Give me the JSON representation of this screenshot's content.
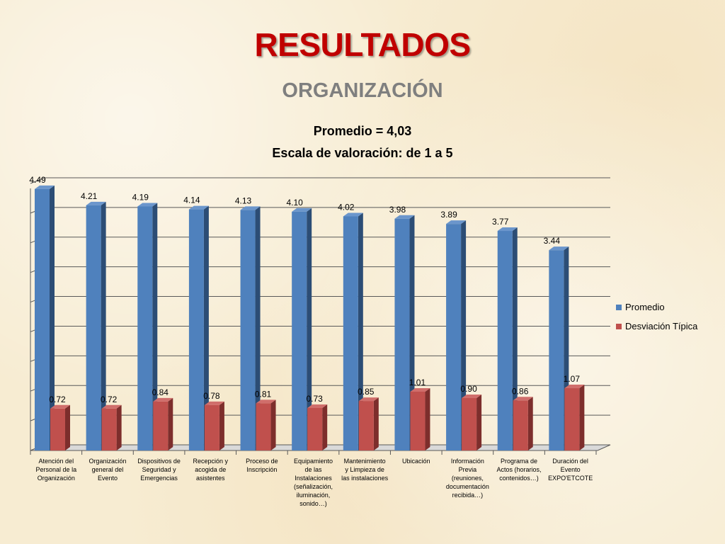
{
  "slide": {
    "title": "RESULTADOS",
    "subtitle": "ORGANIZACIÓN",
    "caption_average": "Promedio = 4,03",
    "caption_scale": "Escala de valoración: de 1 a 5"
  },
  "colors": {
    "promedio": "#4f81bd",
    "desviacion": "#c0504d",
    "title": "#c00000",
    "subtitle": "#7f7f7f"
  },
  "chart_data": {
    "type": "bar",
    "categories": [
      [
        "Atención del",
        "Personal de la",
        "Organización"
      ],
      [
        "Organización",
        "general del",
        "Evento"
      ],
      [
        "Dispositivos de",
        "Seguridad y",
        "Emergencias"
      ],
      [
        "Recepción y",
        "acogida de",
        "asistentes"
      ],
      [
        "Proceso de",
        "Inscripción"
      ],
      [
        "Equipamiento",
        "de las",
        "Instalaciones",
        "(señalización,",
        "iluminación,",
        "sonido…)"
      ],
      [
        "Mantenimiento",
        "y Limpieza de",
        "las instalaciones"
      ],
      [
        "Ubicación"
      ],
      [
        "Información",
        "Previa",
        "(reuniones,",
        "documentación",
        "recibida…)"
      ],
      [
        "Programa de",
        "Actos (horarios,",
        "contenidos…)"
      ],
      [
        "Duración del",
        "Evento",
        "EXPO'ETCOTE"
      ]
    ],
    "series": [
      {
        "name": "Promedio",
        "values": [
          4.49,
          4.21,
          4.19,
          4.14,
          4.13,
          4.1,
          4.02,
          3.98,
          3.89,
          3.77,
          3.44
        ],
        "labels": [
          "4.49",
          "4.21",
          "4.19",
          "4.14",
          "4.13",
          "4.10",
          "4.02",
          "3.98",
          "3.89",
          "3.77",
          "3.44"
        ]
      },
      {
        "name": "Desviación Típica",
        "values": [
          0.72,
          0.72,
          0.84,
          0.78,
          0.81,
          0.73,
          0.85,
          1.01,
          0.9,
          0.86,
          1.07
        ],
        "labels": [
          "0.72",
          "0.72",
          "0.84",
          "0.78",
          "0.81",
          "0.73",
          "0.85",
          "1.01",
          "0.90",
          "0.86",
          "1.07"
        ]
      }
    ],
    "ylim": [
      0,
      4.5
    ],
    "grid": true,
    "legend_position": "right",
    "style": "3d-clustered-column"
  }
}
